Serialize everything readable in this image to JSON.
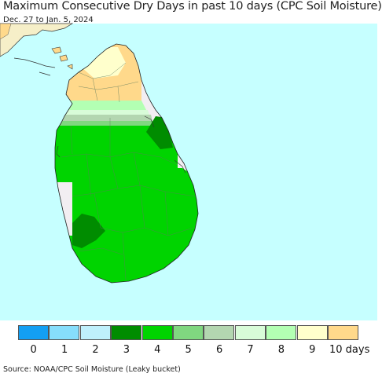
{
  "title": "Maximum Consecutive Dry Days in past 10 days (CPC Soil Moisture)",
  "date_range": "Dec. 27 to Jan. 5, 2024",
  "source": "Source: NOAA/CPC Soil Moisture (Leaky bucket)",
  "colors": {
    "ocean": "#c6ffff",
    "land_no_data": "#f2eef2",
    "india_land": "#f6efc8"
  },
  "legend": {
    "items": [
      {
        "value": "0",
        "color": "#139ff3"
      },
      {
        "value": "1",
        "color": "#86defc"
      },
      {
        "value": "2",
        "color": "#bff0fc"
      },
      {
        "value": "3",
        "color": "#008c00"
      },
      {
        "value": "4",
        "color": "#00d400"
      },
      {
        "value": "5",
        "color": "#80d780"
      },
      {
        "value": "6",
        "color": "#b3d6b0"
      },
      {
        "value": "7",
        "color": "#d8fcd8"
      },
      {
        "value": "8",
        "color": "#b3ffb3"
      },
      {
        "value": "9",
        "color": "#ffffcc"
      },
      {
        "value": "10 days",
        "color": "#ffd98b"
      }
    ]
  }
}
